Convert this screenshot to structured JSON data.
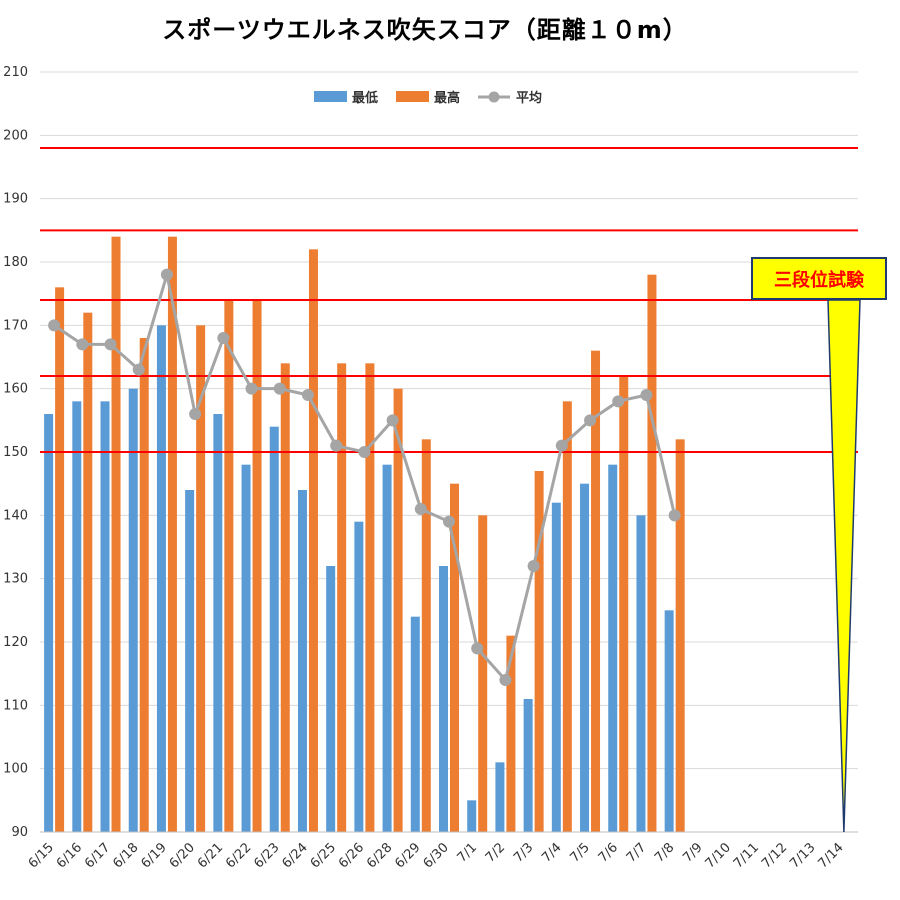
{
  "chart_data": {
    "type": "bar",
    "title": "スポーツウエルネス吹矢スコア（距離１０m）",
    "categories": [
      "6/15",
      "6/16",
      "6/17",
      "6/18",
      "6/19",
      "6/20",
      "6/21",
      "6/22",
      "6/23",
      "6/24",
      "6/25",
      "6/26",
      "6/28",
      "6/29",
      "6/30",
      "7/1",
      "7/2",
      "7/3",
      "7/4",
      "7/5",
      "7/6",
      "7/7",
      "7/8",
      "7/9",
      "7/10",
      "7/11",
      "7/12",
      "7/13",
      "7/14"
    ],
    "ylim": [
      90,
      210
    ],
    "yticks": [
      90,
      100,
      110,
      120,
      130,
      140,
      150,
      160,
      170,
      180,
      190,
      200,
      210
    ],
    "grid": true,
    "legend_position": "top",
    "series": [
      {
        "name": "最低",
        "type": "bar",
        "color": "#5b9bd5",
        "values": [
          156,
          158,
          158,
          160,
          170,
          144,
          156,
          148,
          154,
          144,
          132,
          139,
          148,
          124,
          132,
          95,
          101,
          111,
          142,
          145,
          148,
          140,
          125,
          null,
          null,
          null,
          null,
          null,
          null
        ]
      },
      {
        "name": "最高",
        "type": "bar",
        "color": "#ed7d31",
        "values": [
          176,
          172,
          184,
          168,
          184,
          170,
          174,
          174,
          164,
          182,
          164,
          164,
          160,
          152,
          145,
          140,
          121,
          147,
          158,
          166,
          162,
          178,
          152,
          null,
          null,
          null,
          null,
          null,
          null
        ]
      },
      {
        "name": "平均",
        "type": "line",
        "color": "#a5a5a5",
        "values": [
          170,
          167,
          167,
          163,
          178,
          156,
          168,
          160,
          160,
          159,
          151,
          150,
          155,
          141,
          139,
          119,
          114,
          132,
          151,
          155,
          158,
          159,
          140,
          null,
          null,
          null,
          null,
          null,
          null
        ]
      }
    ],
    "reference_lines": {
      "color": "#ff0000",
      "values": [
        150,
        162,
        174,
        185,
        198
      ]
    },
    "annotation": {
      "text": "三段位試験",
      "points_to_category": "7/14",
      "fill": "#ffff00",
      "text_color": "#ff0000"
    }
  }
}
